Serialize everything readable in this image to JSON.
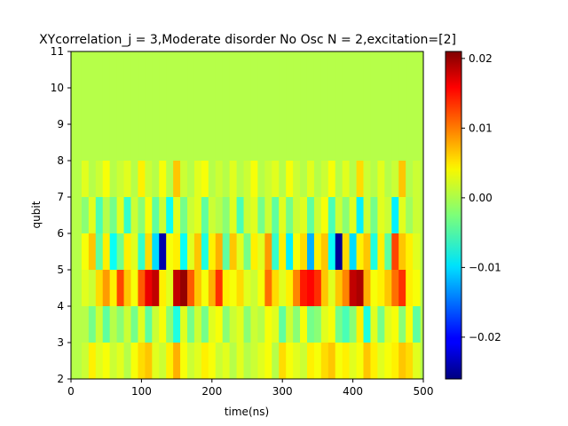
{
  "chart_data": {
    "type": "heatmap",
    "title": "XYcorrelation_j = 3,Moderate disorder No Osc N =  2,excitation=[2]",
    "xlabel": "time(ns)",
    "ylabel": "qubit",
    "xlim": [
      0,
      500
    ],
    "ylim": [
      2,
      11
    ],
    "xticks": [
      "0",
      "100",
      "200",
      "300",
      "400",
      "500"
    ],
    "yticks": [
      "2",
      "3",
      "4",
      "5",
      "6",
      "7",
      "8",
      "9",
      "10",
      "11"
    ],
    "colormap": "jet",
    "colorbar": {
      "range": [
        -0.026,
        0.021
      ],
      "ticks": [
        "0.01",
        "0.00",
        "−0.01",
        "−0.02",
        "0.02"
      ],
      "tick_values": [
        0.01,
        0.0,
        -0.01,
        -0.02,
        0.02
      ]
    },
    "grid": false,
    "time_step_ns": 10,
    "time_start_ns": 20,
    "time_stop_ns": 490,
    "rows": [
      {
        "qubit_band": [
          2,
          3
        ],
        "values_by_time": [
          0.001,
          0.004,
          0.002,
          0.003,
          0.001,
          0.002,
          0.0,
          0.003,
          0.005,
          0.006,
          0.002,
          0.001,
          0.004,
          0.007,
          0.003,
          0.001,
          0.002,
          0.004,
          0.003,
          0.001,
          0.002,
          0.0,
          0.002,
          0.0,
          0.001,
          0.002,
          0.003,
          0.0,
          0.005,
          0.003,
          0.002,
          0.001,
          0.004,
          0.003,
          0.005,
          0.006,
          0.003,
          0.004,
          0.002,
          0.003,
          0.006,
          0.004,
          0.002,
          0.003,
          0.004,
          0.006,
          0.005,
          0.002
        ]
      },
      {
        "qubit_band": [
          3,
          4
        ],
        "values_by_time": [
          0.0,
          -0.003,
          0.001,
          -0.004,
          0.0,
          -0.002,
          0.001,
          -0.003,
          0.002,
          -0.004,
          0.001,
          0.003,
          -0.002,
          -0.007,
          0.002,
          -0.003,
          0.001,
          -0.003,
          0.002,
          0.003,
          -0.002,
          0.001,
          0.002,
          -0.002,
          0.001,
          0.0,
          0.003,
          0.002,
          -0.004,
          0.001,
          -0.002,
          0.003,
          -0.003,
          -0.002,
          0.002,
          0.003,
          -0.003,
          -0.005,
          -0.002,
          0.004,
          -0.007,
          0.002,
          -0.003,
          0.002,
          0.003,
          -0.002,
          0.003,
          -0.004
        ]
      },
      {
        "qubit_band": [
          4,
          5
        ],
        "values_by_time": [
          0.002,
          0.001,
          0.005,
          0.008,
          0.004,
          0.012,
          0.006,
          0.003,
          0.011,
          0.016,
          0.018,
          0.004,
          0.002,
          0.018,
          0.02,
          0.011,
          0.006,
          0.003,
          0.007,
          0.013,
          0.004,
          0.003,
          0.005,
          0.002,
          0.001,
          0.003,
          0.01,
          0.005,
          0.002,
          0.004,
          0.009,
          0.014,
          0.015,
          0.013,
          0.006,
          0.002,
          0.006,
          0.009,
          0.018,
          0.019,
          0.007,
          0.003,
          0.004,
          0.006,
          0.01,
          0.013,
          0.004,
          0.003
        ]
      },
      {
        "qubit_band": [
          5,
          6
        ],
        "values_by_time": [
          0.003,
          0.006,
          -0.004,
          0.004,
          -0.008,
          -0.003,
          0.004,
          0.002,
          -0.006,
          0.005,
          -0.01,
          -0.024,
          0.003,
          0.004,
          -0.008,
          0.002,
          0.006,
          -0.007,
          0.004,
          0.007,
          -0.004,
          0.006,
          0.002,
          -0.003,
          0.004,
          0.002,
          0.008,
          -0.006,
          0.004,
          -0.009,
          0.003,
          0.005,
          -0.012,
          0.004,
          0.006,
          -0.008,
          -0.025,
          0.005,
          -0.01,
          0.004,
          0.006,
          -0.007,
          0.004,
          -0.004,
          0.012,
          0.006,
          0.004,
          0.002
        ]
      },
      {
        "qubit_band": [
          6,
          7
        ],
        "values_by_time": [
          -0.002,
          0.002,
          -0.005,
          0.0,
          -0.003,
          0.002,
          -0.006,
          0.001,
          -0.002,
          0.003,
          -0.004,
          0.001,
          -0.008,
          0.002,
          -0.003,
          0.001,
          0.002,
          -0.004,
          0.001,
          0.0,
          -0.002,
          0.002,
          -0.005,
          0.001,
          0.002,
          -0.003,
          0.001,
          -0.004,
          0.002,
          -0.003,
          0.001,
          0.002,
          -0.004,
          0.001,
          0.003,
          -0.005,
          0.001,
          -0.002,
          0.002,
          -0.009,
          0.001,
          -0.003,
          0.002,
          0.001,
          -0.009,
          0.002,
          -0.001,
          0.001
        ]
      },
      {
        "qubit_band": [
          7,
          8
        ],
        "values_by_time": [
          0.002,
          0.0,
          0.001,
          0.003,
          0.0,
          0.001,
          0.002,
          0.0,
          0.004,
          0.001,
          0.0,
          0.003,
          0.0,
          0.006,
          0.001,
          0.0,
          0.002,
          0.003,
          0.0,
          0.001,
          0.0,
          0.002,
          0.0,
          0.001,
          0.003,
          0.0,
          0.001,
          0.002,
          0.0,
          0.003,
          0.001,
          0.0,
          0.002,
          0.0,
          0.001,
          0.003,
          0.0,
          0.002,
          0.0,
          0.005,
          0.001,
          0.0,
          0.002,
          0.0,
          0.001,
          0.006,
          0.0,
          0.001
        ]
      },
      {
        "qubit_band": [
          8,
          11
        ],
        "values_by_time": [
          0.0,
          0.0,
          0.0,
          0.0,
          0.0,
          0.0,
          0.0,
          0.0,
          0.0,
          0.0,
          0.0,
          0.0,
          0.0,
          0.0,
          0.0,
          0.0,
          0.0,
          0.0,
          0.0,
          0.0,
          0.0,
          0.0,
          0.0,
          0.0,
          0.0,
          0.0,
          0.0,
          0.0,
          0.0,
          0.0,
          0.0,
          0.0,
          0.0,
          0.0,
          0.0,
          0.0,
          0.0,
          0.0,
          0.0,
          0.0,
          0.0,
          0.0,
          0.0,
          0.0,
          0.0,
          0.0,
          0.0,
          0.0
        ]
      }
    ]
  }
}
